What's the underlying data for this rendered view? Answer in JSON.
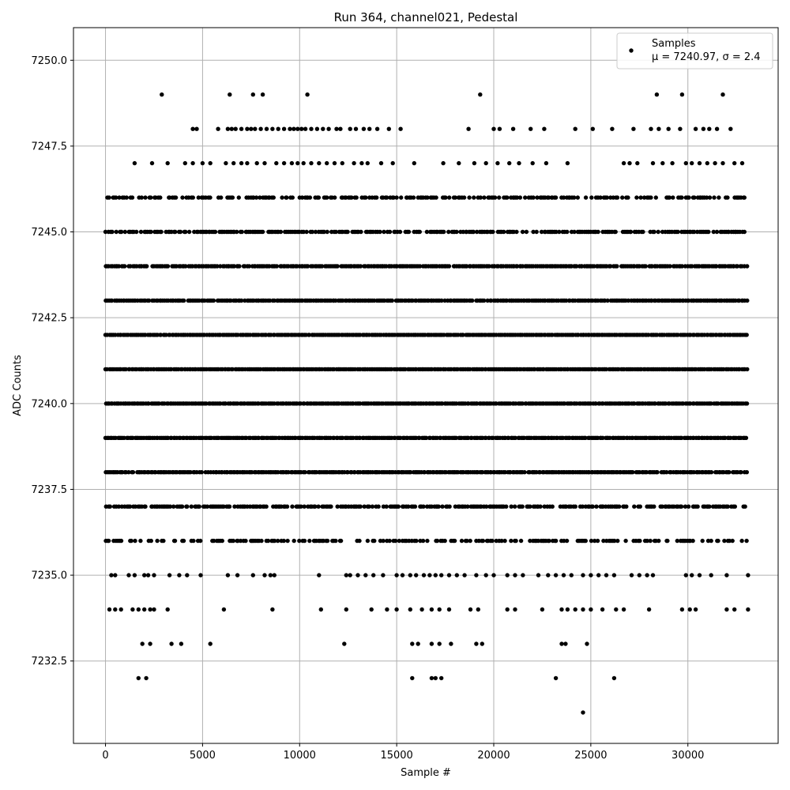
{
  "chart_data": {
    "type": "scatter",
    "title": "Run 364, channel021, Pedestal",
    "xlabel": "Sample #",
    "ylabel": "ADC Counts",
    "xlim": [
      -1650,
      34650
    ],
    "ylim": [
      7230.1,
      7250.95
    ],
    "x_ticks": [
      0,
      5000,
      10000,
      15000,
      20000,
      25000,
      30000
    ],
    "x_tick_labels": [
      "0",
      "5000",
      "10000",
      "15000",
      "20000",
      "25000",
      "30000"
    ],
    "y_ticks": [
      7232.5,
      7235.0,
      7237.5,
      7240.0,
      7242.5,
      7245.0,
      7247.5,
      7250.0
    ],
    "y_tick_labels": [
      "7232.5",
      "7235.0",
      "7237.5",
      "7240.0",
      "7242.5",
      "7245.0",
      "7247.5",
      "7250.0"
    ],
    "grid": true,
    "marker_color": "#000000",
    "legend": {
      "position": "top-right",
      "entries": [
        "Samples",
        "$\\mu$ = 7240.97, $\\sigma$ = 2.4"
      ],
      "display_lines": [
        "Samples",
        "μ = 7240.97, σ = 2.4"
      ]
    },
    "series": [
      {
        "name": "Samples",
        "x_range": [
          0,
          33100
        ],
        "levels": [
          {
            "y": 7249,
            "x": [
              2900,
              6400,
              7600,
              8100,
              10400,
              19300,
              28400,
              29700,
              31800
            ]
          },
          {
            "y": 7248,
            "x": [
              4500,
              4700,
              5800,
              6300,
              6500,
              6700,
              7000,
              7300,
              7500,
              7700,
              8000,
              8300,
              8600,
              8900,
              9200,
              9500,
              9700,
              9900,
              10100,
              10300,
              10600,
              10900,
              11200,
              11500,
              11900,
              12100,
              12600,
              12900,
              13300,
              13600,
              14000,
              14600,
              15200,
              18700,
              20000,
              20300,
              21000,
              21900,
              22600,
              24200,
              25100,
              26100,
              27200,
              28100,
              28500,
              29000,
              29600,
              30400,
              30800,
              31100,
              31500,
              32200
            ]
          },
          {
            "y": 7247,
            "x": [
              1500,
              2400,
              3200,
              4100,
              4500,
              5000,
              5400,
              6200,
              6600,
              7000,
              7300,
              7800,
              8200,
              8800,
              9200,
              9600,
              9900,
              10200,
              10600,
              11000,
              11400,
              11800,
              12200,
              12800,
              13200,
              13500,
              14200,
              14800,
              15900,
              17400,
              18200,
              19000,
              19600,
              20200,
              20800,
              21300,
              22000,
              22700,
              23800,
              26700,
              27000,
              27400,
              28200,
              28700,
              29200,
              29900,
              30200,
              30600,
              31000,
              31400,
              31800,
              32400,
              32800
            ]
          },
          {
            "dense": true,
            "y": 7246,
            "density": 0.55
          },
          {
            "dense": true,
            "y": 7245,
            "density": 0.75
          },
          {
            "dense": true,
            "y": 7244,
            "density": 0.95
          },
          {
            "dense": true,
            "y": 7243,
            "density": 0.95
          },
          {
            "dense": true,
            "y": 7242,
            "density": 1.0
          },
          {
            "dense": true,
            "y": 7241,
            "density": 1.0
          },
          {
            "dense": true,
            "y": 7240,
            "density": 1.0
          },
          {
            "dense": true,
            "y": 7239,
            "density": 1.0
          },
          {
            "dense": true,
            "y": 7238,
            "density": 0.95
          },
          {
            "dense": true,
            "y": 7237,
            "density": 0.7
          },
          {
            "dense": true,
            "y": 7236,
            "density": 0.5
          },
          {
            "y": 7235,
            "x": [
              300,
              500,
              1200,
              1500,
              2000,
              2200,
              2500,
              3300,
              3800,
              4200,
              4900,
              6300,
              6800,
              7600,
              8200,
              8500,
              8700,
              11000,
              12400,
              12600,
              13000,
              13400,
              13800,
              14300,
              15000,
              15300,
              15700,
              16000,
              16400,
              16700,
              17000,
              17300,
              17700,
              18100,
              18500,
              19100,
              19600,
              20000,
              20700,
              21100,
              21500,
              22300,
              22800,
              23200,
              23600,
              24000,
              24600,
              25000,
              25400,
              25800,
              26200,
              27100,
              27500,
              27900,
              28200,
              29900,
              30200,
              30600,
              31200,
              32000,
              33100
            ]
          },
          {
            "y": 7234,
            "x": [
              200,
              500,
              800,
              1400,
              1700,
              2000,
              2300,
              2500,
              3200,
              6100,
              8600,
              11100,
              12400,
              13700,
              14500,
              15000,
              15700,
              16300,
              16800,
              17200,
              17700,
              18800,
              19200,
              20700,
              21100,
              22500,
              23500,
              23800,
              24200,
              24600,
              25000,
              25600,
              26300,
              26700,
              28000,
              29700,
              30100,
              30400,
              32000,
              32400,
              33100
            ]
          },
          {
            "y": 7233,
            "x": [
              1900,
              2300,
              3400,
              3900,
              5400,
              12300,
              15800,
              16100,
              16800,
              17200,
              17800,
              19100,
              19400,
              23500,
              23700,
              24800
            ]
          },
          {
            "y": 7232,
            "x": [
              1700,
              2100,
              15800,
              16800,
              17000,
              17300,
              23200,
              26200
            ]
          },
          {
            "y": 7231,
            "x": [
              24600
            ]
          }
        ]
      }
    ]
  }
}
